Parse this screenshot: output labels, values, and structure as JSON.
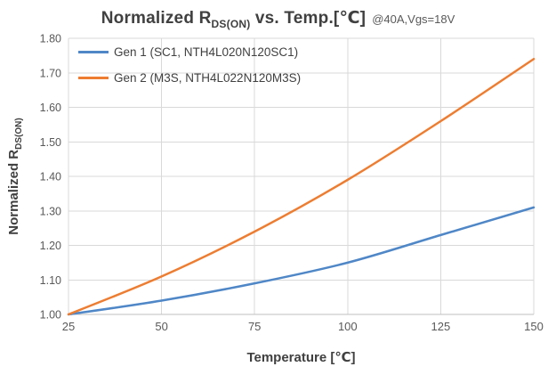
{
  "header": {
    "title_prefix": "Normalized R",
    "title_subscript": "DS(ON)",
    "title_rest": " vs. Temp.[℃]",
    "annotation": "@40A,Vgs=18V"
  },
  "axes": {
    "x_label": "Temperature [℃]",
    "y_label_prefix": "Normalized R",
    "y_label_subscript": "DS(ON)"
  },
  "chart_data": {
    "type": "line",
    "title": "Normalized RDS(ON) vs. Temp.[℃] @40A,Vgs=18V",
    "xlabel": "Temperature [℃]",
    "ylabel": "Normalized RDS(ON)",
    "x": [
      25,
      50,
      75,
      100,
      125,
      150
    ],
    "series": [
      {
        "name": "Gen 1 (SC1, NTH4L020N120SC1)",
        "color": "#4F87C7",
        "values": [
          1.0,
          1.04,
          1.09,
          1.15,
          1.23,
          1.31
        ]
      },
      {
        "name": "Gen 2 (M3S, NTH4L022N120M3S)",
        "color": "#ED7D31",
        "values": [
          1.0,
          1.11,
          1.24,
          1.39,
          1.56,
          1.74
        ]
      }
    ],
    "xlim": [
      25,
      150
    ],
    "ylim": [
      1.0,
      1.8
    ],
    "x_ticks": [
      "25",
      "50",
      "75",
      "100",
      "125",
      "150"
    ],
    "y_ticks": [
      "1.00",
      "1.10",
      "1.20",
      "1.30",
      "1.40",
      "1.50",
      "1.60",
      "1.70",
      "1.80"
    ],
    "grid": true,
    "legend_position": "top-left-inside",
    "colors": {
      "gridline": "#d9d9d9",
      "axis_line": "#bfbfbf",
      "tick_label": "#595959",
      "title_text": "#404040"
    }
  }
}
